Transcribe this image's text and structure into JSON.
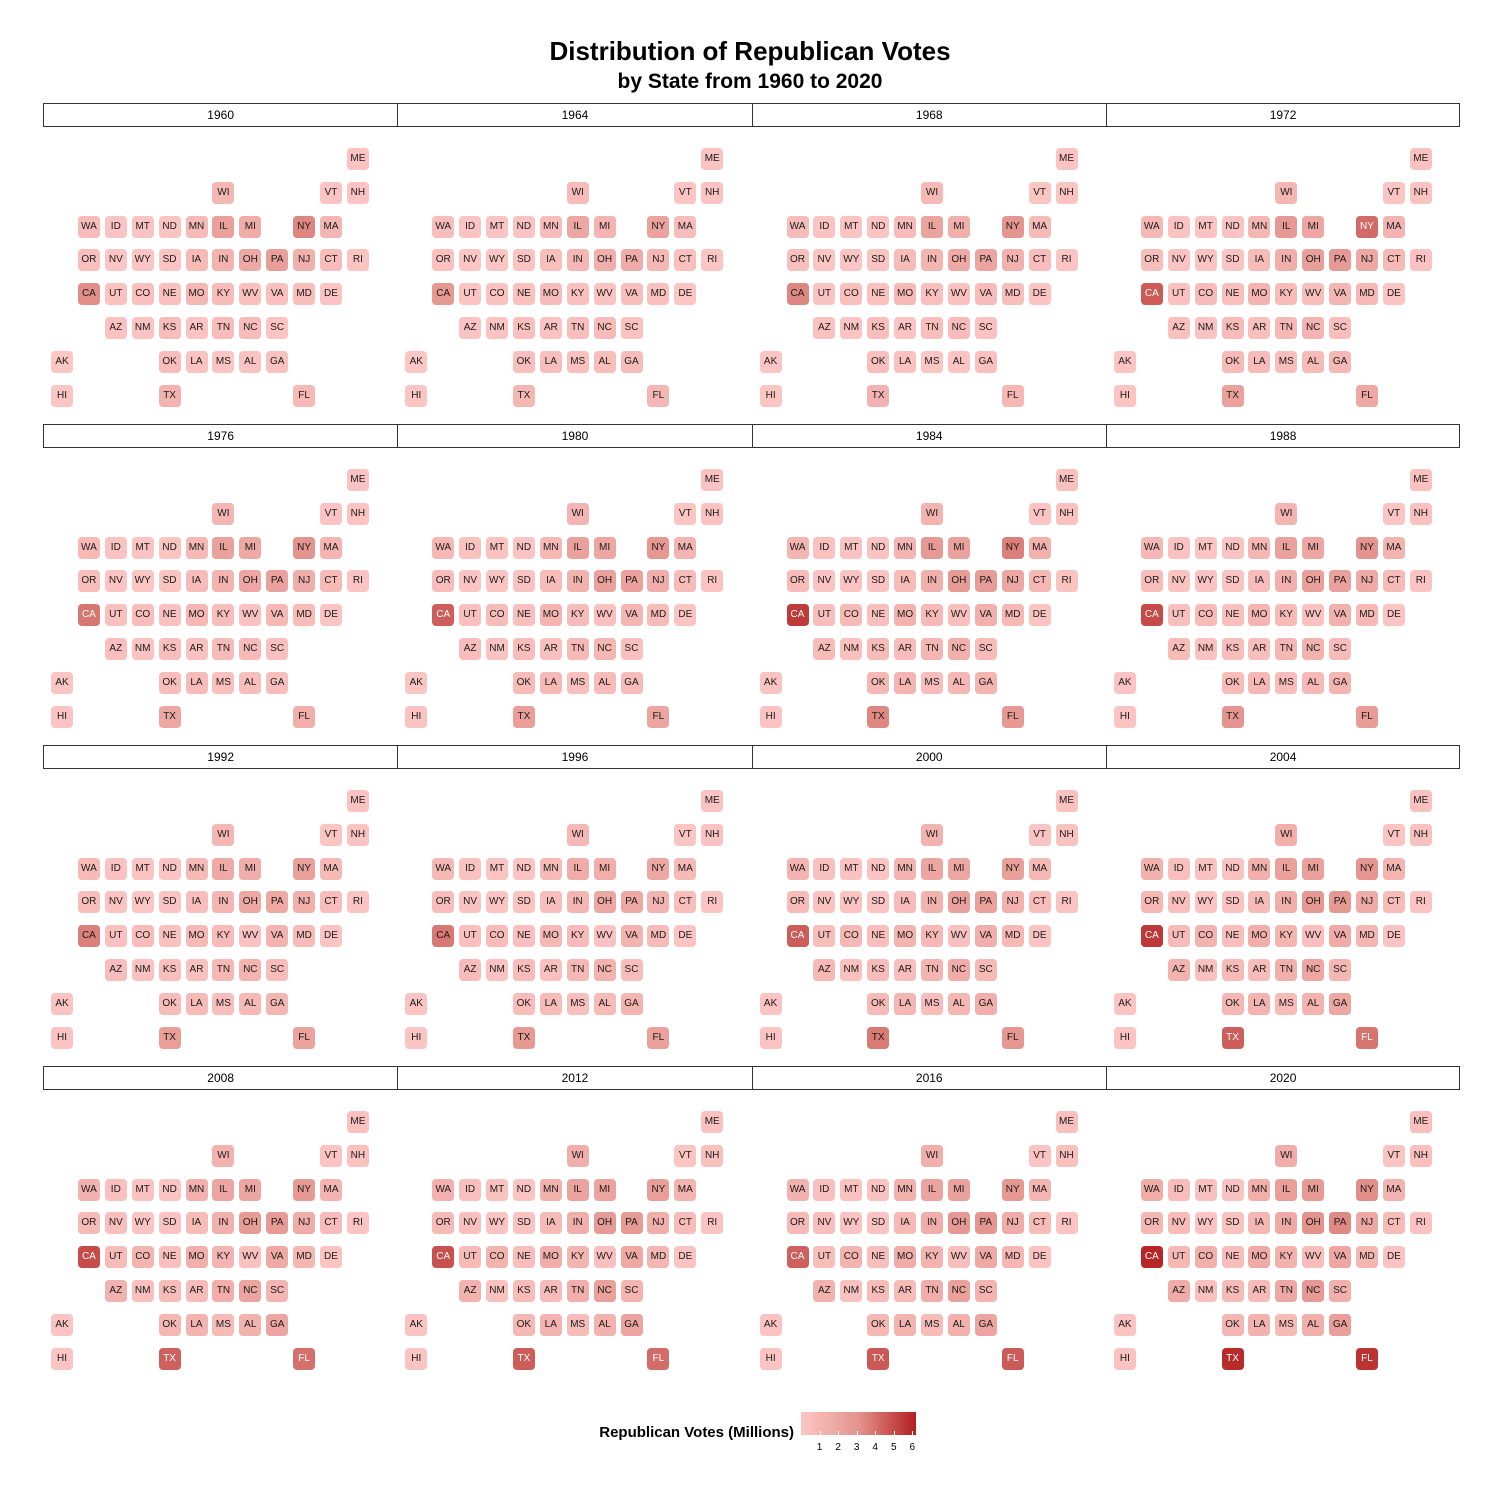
{
  "chart_data": {
    "type": "tile-grid-map",
    "title": "Distribution of Republican Votes",
    "subtitle": "by State from 1960 to 2020",
    "facet_labels": [
      "1960",
      "1964",
      "1968",
      "1972",
      "1976",
      "1980",
      "1984",
      "1988",
      "1992",
      "1996",
      "2000",
      "2004",
      "2008",
      "2012",
      "2016",
      "2020"
    ],
    "grid": [
      {
        "state": "ME",
        "col": 11,
        "row": 0
      },
      {
        "state": "WI",
        "col": 6,
        "row": 1
      },
      {
        "state": "VT",
        "col": 10,
        "row": 1
      },
      {
        "state": "NH",
        "col": 11,
        "row": 1
      },
      {
        "state": "WA",
        "col": 1,
        "row": 2
      },
      {
        "state": "ID",
        "col": 2,
        "row": 2
      },
      {
        "state": "MT",
        "col": 3,
        "row": 2
      },
      {
        "state": "ND",
        "col": 4,
        "row": 2
      },
      {
        "state": "MN",
        "col": 5,
        "row": 2
      },
      {
        "state": "IL",
        "col": 6,
        "row": 2
      },
      {
        "state": "MI",
        "col": 7,
        "row": 2
      },
      {
        "state": "NY",
        "col": 9,
        "row": 2
      },
      {
        "state": "MA",
        "col": 10,
        "row": 2
      },
      {
        "state": "OR",
        "col": 1,
        "row": 3
      },
      {
        "state": "NV",
        "col": 2,
        "row": 3
      },
      {
        "state": "WY",
        "col": 3,
        "row": 3
      },
      {
        "state": "SD",
        "col": 4,
        "row": 3
      },
      {
        "state": "IA",
        "col": 5,
        "row": 3
      },
      {
        "state": "IN",
        "col": 6,
        "row": 3
      },
      {
        "state": "OH",
        "col": 7,
        "row": 3
      },
      {
        "state": "PA",
        "col": 8,
        "row": 3
      },
      {
        "state": "NJ",
        "col": 9,
        "row": 3
      },
      {
        "state": "CT",
        "col": 10,
        "row": 3
      },
      {
        "state": "RI",
        "col": 11,
        "row": 3
      },
      {
        "state": "CA",
        "col": 1,
        "row": 4
      },
      {
        "state": "UT",
        "col": 2,
        "row": 4
      },
      {
        "state": "CO",
        "col": 3,
        "row": 4
      },
      {
        "state": "NE",
        "col": 4,
        "row": 4
      },
      {
        "state": "MO",
        "col": 5,
        "row": 4
      },
      {
        "state": "KY",
        "col": 6,
        "row": 4
      },
      {
        "state": "WV",
        "col": 7,
        "row": 4
      },
      {
        "state": "VA",
        "col": 8,
        "row": 4
      },
      {
        "state": "MD",
        "col": 9,
        "row": 4
      },
      {
        "state": "DE",
        "col": 10,
        "row": 4
      },
      {
        "state": "AZ",
        "col": 2,
        "row": 5
      },
      {
        "state": "NM",
        "col": 3,
        "row": 5
      },
      {
        "state": "KS",
        "col": 4,
        "row": 5
      },
      {
        "state": "AR",
        "col": 5,
        "row": 5
      },
      {
        "state": "TN",
        "col": 6,
        "row": 5
      },
      {
        "state": "NC",
        "col": 7,
        "row": 5
      },
      {
        "state": "SC",
        "col": 8,
        "row": 5
      },
      {
        "state": "AK",
        "col": 0,
        "row": 6
      },
      {
        "state": "OK",
        "col": 4,
        "row": 6
      },
      {
        "state": "LA",
        "col": 5,
        "row": 6
      },
      {
        "state": "MS",
        "col": 6,
        "row": 6
      },
      {
        "state": "AL",
        "col": 7,
        "row": 6
      },
      {
        "state": "GA",
        "col": 8,
        "row": 6
      },
      {
        "state": "HI",
        "col": 0,
        "row": 7
      },
      {
        "state": "TX",
        "col": 4,
        "row": 7
      },
      {
        "state": "FL",
        "col": 9,
        "row": 7
      }
    ],
    "states": [
      "ME",
      "WI",
      "VT",
      "NH",
      "WA",
      "ID",
      "MT",
      "ND",
      "MN",
      "IL",
      "MI",
      "NY",
      "MA",
      "OR",
      "NV",
      "WY",
      "SD",
      "IA",
      "IN",
      "OH",
      "PA",
      "NJ",
      "CT",
      "RI",
      "CA",
      "UT",
      "CO",
      "NE",
      "MO",
      "KY",
      "WV",
      "VA",
      "MD",
      "DE",
      "AZ",
      "NM",
      "KS",
      "AR",
      "TN",
      "NC",
      "SC",
      "AK",
      "OK",
      "LA",
      "MS",
      "AL",
      "GA",
      "HI",
      "TX",
      "FL"
    ],
    "values_millions": {
      "1960": [
        0.24,
        0.9,
        0.1,
        0.16,
        0.63,
        0.16,
        0.14,
        0.15,
        0.76,
        2.37,
        1.62,
        3.45,
        1.0,
        0.41,
        0.05,
        0.08,
        0.18,
        0.72,
        1.18,
        1.83,
        2.44,
        1.36,
        0.57,
        0.15,
        3.26,
        0.21,
        0.4,
        0.38,
        0.96,
        0.6,
        0.4,
        0.4,
        0.49,
        0.1,
        0.22,
        0.15,
        0.56,
        0.18,
        0.56,
        0.66,
        0.19,
        0.03,
        0.53,
        0.23,
        0.07,
        0.24,
        0.27,
        0.09,
        1.12,
        0.8
      ],
      "1964": [
        0.12,
        0.64,
        0.05,
        0.1,
        0.47,
        0.14,
        0.11,
        0.11,
        0.56,
        1.91,
        1.06,
        2.24,
        0.55,
        0.28,
        0.05,
        0.06,
        0.13,
        0.45,
        0.91,
        1.47,
        1.67,
        0.96,
        0.39,
        0.07,
        2.88,
        0.18,
        0.3,
        0.28,
        0.65,
        0.37,
        0.25,
        0.48,
        0.39,
        0.08,
        0.24,
        0.13,
        0.39,
        0.24,
        0.51,
        0.62,
        0.31,
        0.02,
        0.41,
        0.51,
        0.36,
        0.48,
        0.62,
        0.04,
        0.96,
        0.91
      ],
      "1968": [
        0.17,
        0.81,
        0.09,
        0.15,
        0.59,
        0.17,
        0.14,
        0.14,
        0.66,
        2.17,
        1.37,
        3.01,
        0.77,
        0.41,
        0.07,
        0.07,
        0.15,
        0.62,
        1.07,
        1.79,
        2.09,
        1.33,
        0.56,
        0.12,
        3.47,
        0.24,
        0.41,
        0.32,
        0.81,
        0.46,
        0.31,
        0.59,
        0.52,
        0.1,
        0.27,
        0.17,
        0.48,
        0.19,
        0.47,
        0.63,
        0.25,
        0.04,
        0.45,
        0.26,
        0.09,
        0.15,
        0.38,
        0.09,
        1.23,
        0.89
      ],
      "1972": [
        0.26,
        0.99,
        0.12,
        0.21,
        0.84,
        0.2,
        0.18,
        0.17,
        0.9,
        2.79,
        1.96,
        4.19,
        1.11,
        0.49,
        0.12,
        0.1,
        0.17,
        0.71,
        1.41,
        2.44,
        2.71,
        1.85,
        0.81,
        0.22,
        4.6,
        0.32,
        0.6,
        0.41,
        1.15,
        0.68,
        0.48,
        0.99,
        0.83,
        0.14,
        0.4,
        0.24,
        0.62,
        0.45,
        0.81,
        1.05,
        0.48,
        0.06,
        0.76,
        0.69,
        0.51,
        0.73,
        0.88,
        0.17,
        2.3,
        1.86
      ],
      "1976": [
        0.24,
        1.0,
        0.1,
        0.19,
        0.78,
        0.2,
        0.17,
        0.15,
        0.82,
        2.36,
        1.89,
        3.1,
        1.03,
        0.49,
        0.1,
        0.09,
        0.15,
        0.63,
        1.18,
        2.0,
        2.21,
        1.51,
        0.72,
        0.18,
        3.88,
        0.34,
        0.58,
        0.36,
        0.93,
        0.53,
        0.31,
        0.84,
        0.67,
        0.11,
        0.42,
        0.21,
        0.5,
        0.27,
        0.63,
        0.74,
        0.35,
        0.07,
        0.55,
        0.59,
        0.37,
        0.5,
        0.48,
        0.14,
        1.95,
        1.47
      ],
      "1980": [
        0.24,
        1.09,
        0.09,
        0.22,
        0.87,
        0.29,
        0.21,
        0.19,
        0.87,
        2.36,
        1.92,
        2.89,
        1.06,
        0.57,
        0.16,
        0.11,
        0.2,
        0.68,
        1.26,
        2.21,
        2.26,
        1.55,
        0.68,
        0.15,
        4.52,
        0.44,
        0.65,
        0.42,
        1.07,
        0.64,
        0.33,
        0.99,
        0.68,
        0.11,
        0.53,
        0.25,
        0.57,
        0.4,
        0.79,
        0.92,
        0.44,
        0.09,
        0.7,
        0.79,
        0.44,
        0.65,
        0.65,
        0.13,
        2.51,
        2.05
      ],
      "1984": [
        0.34,
        1.2,
        0.14,
        0.27,
        1.05,
        0.3,
        0.23,
        0.2,
        1.03,
        2.71,
        2.25,
        3.66,
        1.31,
        0.69,
        0.19,
        0.13,
        0.2,
        0.7,
        1.38,
        2.68,
        2.58,
        1.93,
        0.89,
        0.21,
        5.47,
        0.47,
        0.82,
        0.46,
        1.27,
        0.82,
        0.41,
        1.34,
        0.88,
        0.15,
        0.68,
        0.31,
        0.68,
        0.53,
        0.99,
        1.35,
        0.62,
        0.14,
        0.86,
        1.04,
        0.58,
        0.87,
        1.07,
        0.19,
        3.43,
        2.73
      ],
      "1988": [
        0.31,
        1.05,
        0.12,
        0.28,
        0.9,
        0.25,
        0.19,
        0.17,
        0.96,
        2.31,
        1.97,
        3.08,
        1.19,
        0.56,
        0.21,
        0.11,
        0.17,
        0.55,
        1.3,
        2.42,
        2.3,
        1.74,
        0.75,
        0.18,
        5.05,
        0.43,
        0.73,
        0.4,
        1.08,
        0.73,
        0.31,
        1.31,
        0.88,
        0.14,
        0.7,
        0.27,
        0.55,
        0.47,
        0.95,
        1.24,
        0.61,
        0.12,
        0.68,
        0.88,
        0.56,
        0.82,
        1.08,
        0.16,
        3.04,
        2.62
      ],
      "1992": [
        0.21,
        0.93,
        0.09,
        0.2,
        0.73,
        0.2,
        0.14,
        0.14,
        0.75,
        1.73,
        1.55,
        2.35,
        0.81,
        0.48,
        0.18,
        0.08,
        0.14,
        0.5,
        0.99,
        1.89,
        1.79,
        1.36,
        0.58,
        0.13,
        3.63,
        0.32,
        0.56,
        0.34,
        0.81,
        0.62,
        0.24,
        1.15,
        0.71,
        0.1,
        0.57,
        0.21,
        0.45,
        0.34,
        0.84,
        1.13,
        0.58,
        0.1,
        0.59,
        0.73,
        0.49,
        0.8,
        0.99,
        0.14,
        2.5,
        2.17
      ],
      "1996": [
        0.19,
        0.85,
        0.08,
        0.2,
        0.84,
        0.26,
        0.18,
        0.13,
        0.77,
        1.59,
        1.48,
        1.93,
        0.72,
        0.54,
        0.2,
        0.11,
        0.15,
        0.49,
        1.01,
        1.86,
        1.8,
        1.1,
        0.48,
        0.1,
        3.83,
        0.36,
        0.69,
        0.36,
        0.89,
        0.62,
        0.23,
        1.14,
        0.68,
        0.1,
        0.62,
        0.23,
        0.58,
        0.33,
        0.86,
        1.23,
        0.57,
        0.12,
        0.58,
        0.71,
        0.44,
        0.77,
        1.08,
        0.11,
        2.74,
        2.24
      ],
      "2000": [
        0.29,
        1.24,
        0.12,
        0.27,
        1.11,
        0.34,
        0.24,
        0.17,
        1.11,
        2.02,
        1.95,
        2.4,
        0.88,
        0.71,
        0.3,
        0.15,
        0.19,
        0.63,
        1.25,
        2.35,
        2.28,
        1.28,
        0.56,
        0.13,
        4.57,
        0.52,
        0.88,
        0.43,
        1.19,
        0.87,
        0.34,
        1.44,
        0.81,
        0.14,
        0.78,
        0.29,
        0.62,
        0.47,
        1.06,
        1.63,
        0.79,
        0.17,
        0.74,
        0.93,
        0.57,
        0.94,
        1.42,
        0.14,
        3.8,
        2.91
      ],
      "2004": [
        0.33,
        1.48,
        0.12,
        0.33,
        1.3,
        0.41,
        0.27,
        0.2,
        1.35,
        2.35,
        2.31,
        2.96,
        1.07,
        0.87,
        0.42,
        0.17,
        0.23,
        0.75,
        1.48,
        2.86,
        2.79,
        1.67,
        0.69,
        0.17,
        5.51,
        0.66,
        1.1,
        0.51,
        1.46,
        1.07,
        0.42,
        1.72,
        1.02,
        0.17,
        1.1,
        0.38,
        0.74,
        0.57,
        1.38,
        1.96,
        0.94,
        0.19,
        0.96,
        1.1,
        0.68,
        1.18,
        1.91,
        0.19,
        4.53,
        3.96
      ],
      "2008": [
        0.3,
        1.26,
        0.1,
        0.32,
        1.23,
        0.4,
        0.24,
        0.17,
        1.28,
        2.03,
        2.05,
        2.75,
        1.11,
        0.74,
        0.41,
        0.16,
        0.2,
        0.68,
        1.35,
        2.68,
        2.66,
        1.61,
        0.63,
        0.17,
        5.01,
        0.6,
        1.07,
        0.45,
        1.45,
        1.05,
        0.4,
        1.73,
        0.96,
        0.15,
        1.23,
        0.35,
        0.7,
        0.64,
        1.48,
        2.13,
        1.03,
        0.19,
        0.96,
        1.15,
        0.72,
        1.27,
        2.05,
        0.12,
        4.48,
        4.05
      ],
      "2012": [
        0.29,
        1.41,
        0.09,
        0.33,
        1.29,
        0.42,
        0.27,
        0.19,
        1.32,
        2.14,
        2.12,
        2.49,
        1.19,
        0.75,
        0.46,
        0.17,
        0.21,
        0.73,
        1.42,
        2.66,
        2.68,
        1.48,
        0.63,
        0.16,
        4.84,
        0.74,
        1.19,
        0.48,
        1.48,
        1.09,
        0.42,
        1.82,
        0.97,
        0.17,
        1.23,
        0.34,
        0.69,
        0.65,
        1.46,
        2.27,
        1.07,
        0.16,
        0.89,
        1.15,
        0.71,
        1.26,
        2.08,
        0.12,
        4.57,
        4.16
      ],
      "2016": [
        0.34,
        1.41,
        0.1,
        0.35,
        1.22,
        0.41,
        0.28,
        0.22,
        1.32,
        2.15,
        2.28,
        2.82,
        1.09,
        0.78,
        0.51,
        0.17,
        0.23,
        0.8,
        1.56,
        2.84,
        2.97,
        1.6,
        0.67,
        0.18,
        4.48,
        0.52,
        1.2,
        0.5,
        1.59,
        1.2,
        0.49,
        1.77,
        0.94,
        0.19,
        1.25,
        0.32,
        0.67,
        0.68,
        1.52,
        2.36,
        1.16,
        0.16,
        0.95,
        1.18,
        0.7,
        1.32,
        2.09,
        0.13,
        4.69,
        4.62
      ],
      "2020": [
        0.36,
        1.61,
        0.11,
        0.37,
        1.58,
        0.55,
        0.34,
        0.24,
        1.48,
        2.45,
        2.65,
        3.25,
        1.17,
        0.96,
        0.67,
        0.19,
        0.26,
        0.9,
        1.73,
        3.15,
        3.38,
        1.88,
        0.71,
        0.2,
        6.01,
        0.87,
        1.36,
        0.56,
        1.72,
        1.33,
        0.55,
        1.96,
        0.98,
        0.2,
        1.66,
        0.4,
        0.77,
        0.76,
        1.85,
        2.76,
        1.39,
        0.19,
        1.02,
        1.26,
        0.76,
        1.44,
        2.46,
        0.2,
        5.89,
        5.67
      ]
    },
    "legend": {
      "title": "Republican Votes (Millions)",
      "ticks": [
        "1",
        "2",
        "3",
        "4",
        "5",
        "6"
      ],
      "range": [
        0,
        6.2
      ],
      "color_low": "#fcc6c4",
      "color_mid": "#e4948e",
      "color_high": "#b21f1f"
    }
  }
}
